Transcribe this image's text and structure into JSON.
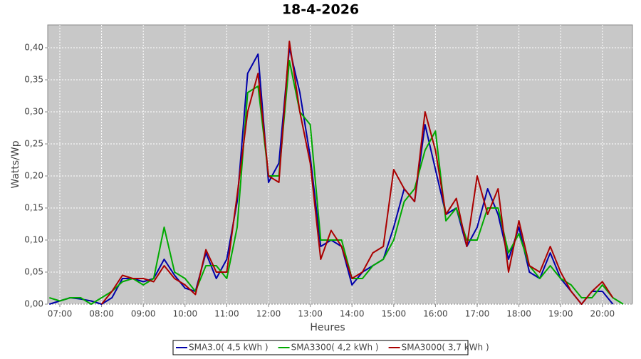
{
  "chart_data": {
    "type": "line",
    "title": "18-4-2026",
    "x_label": "Heures",
    "y_label": "Watts/Wp",
    "grid": true,
    "x": [
      6.75,
      7.0,
      7.25,
      7.5,
      7.75,
      8.0,
      8.25,
      8.5,
      8.75,
      9.0,
      9.25,
      9.5,
      9.75,
      10.0,
      10.25,
      10.5,
      10.75,
      11.0,
      11.25,
      11.5,
      11.75,
      12.0,
      12.25,
      12.5,
      12.75,
      13.0,
      13.25,
      13.5,
      13.75,
      14.0,
      14.25,
      14.5,
      14.75,
      15.0,
      15.25,
      15.5,
      15.75,
      16.0,
      16.25,
      16.5,
      16.75,
      17.0,
      17.25,
      17.5,
      17.75,
      18.0,
      18.25,
      18.5,
      18.75,
      19.0,
      19.25,
      19.5,
      19.75,
      20.0,
      20.25,
      20.5
    ],
    "series": [
      {
        "name": "SMA3.0( 4,5 kWh )",
        "color": "#0000aa",
        "values": [
          0,
          0.005,
          0.01,
          0.008,
          0.005,
          0,
          0.01,
          0.04,
          0.04,
          0.035,
          0.04,
          0.07,
          0.045,
          0.025,
          0.02,
          0.08,
          0.04,
          0.07,
          0.16,
          0.36,
          0.39,
          0.19,
          0.22,
          0.4,
          0.33,
          0.23,
          0.09,
          0.1,
          0.09,
          0.03,
          0.05,
          0.06,
          0.07,
          0.12,
          0.18,
          0.16,
          0.28,
          0.21,
          0.14,
          0.15,
          0.09,
          0.12,
          0.18,
          0.14,
          0.07,
          0.12,
          0.05,
          0.04,
          0.08,
          0.04,
          0.02,
          0,
          0.02,
          0.02,
          0,
          null
        ]
      },
      {
        "name": "SMA3300( 4,2 kWh )",
        "color": "#00aa00",
        "values": [
          0.01,
          0.005,
          0.01,
          0.01,
          0,
          0.01,
          0.02,
          0.035,
          0.04,
          0.03,
          0.04,
          0.12,
          0.05,
          0.04,
          0.02,
          0.06,
          0.06,
          0.04,
          0.12,
          0.33,
          0.34,
          0.2,
          0.2,
          0.38,
          0.3,
          0.28,
          0.1,
          0.1,
          0.1,
          0.04,
          0.04,
          0.06,
          0.07,
          0.1,
          0.16,
          0.18,
          0.24,
          0.27,
          0.13,
          0.15,
          0.1,
          0.1,
          0.15,
          0.15,
          0.08,
          0.11,
          0.06,
          0.04,
          0.06,
          0.04,
          0.03,
          0.01,
          0.01,
          0.03,
          0.01,
          0
        ]
      },
      {
        "name": "SMA3000( 3,7 kWh )",
        "color": "#aa0000",
        "values": [
          null,
          null,
          null,
          null,
          null,
          0,
          0.02,
          0.045,
          0.04,
          0.04,
          0.035,
          0.06,
          0.04,
          0.03,
          0.015,
          0.085,
          0.05,
          0.05,
          0.17,
          0.3,
          0.36,
          0.2,
          0.19,
          0.41,
          0.3,
          0.22,
          0.07,
          0.115,
          0.09,
          0.04,
          0.05,
          0.08,
          0.09,
          0.21,
          0.18,
          0.16,
          0.3,
          0.24,
          0.14,
          0.165,
          0.09,
          0.2,
          0.14,
          0.18,
          0.05,
          0.13,
          0.06,
          0.05,
          0.09,
          0.05,
          0.02,
          0,
          0.02,
          0.035,
          0.01,
          null
        ]
      }
    ],
    "xlim": [
      6.71,
      20.72
    ],
    "ylim": [
      0,
      0.4356
    ],
    "xticks": [
      {
        "value": 7,
        "label": "07:00"
      },
      {
        "value": 8,
        "label": "08:00"
      },
      {
        "value": 9,
        "label": "09:00"
      },
      {
        "value": 10,
        "label": "10:00"
      },
      {
        "value": 11,
        "label": "11:00"
      },
      {
        "value": 12,
        "label": "12:00"
      },
      {
        "value": 13,
        "label": "13:00"
      },
      {
        "value": 14,
        "label": "14:00"
      },
      {
        "value": 15,
        "label": "15:00"
      },
      {
        "value": 16,
        "label": "16:00"
      },
      {
        "value": 17,
        "label": "17:00"
      },
      {
        "value": 18,
        "label": "18:00"
      },
      {
        "value": 19,
        "label": "19:00"
      },
      {
        "value": 20,
        "label": "20:00"
      }
    ],
    "yticks": [
      {
        "value": 0,
        "label": "0,00"
      },
      {
        "value": 0.05,
        "label": "0,05"
      },
      {
        "value": 0.1,
        "label": "0,10"
      },
      {
        "value": 0.15,
        "label": "0,15"
      },
      {
        "value": 0.2,
        "label": "0,20"
      },
      {
        "value": 0.25,
        "label": "0,25"
      },
      {
        "value": 0.3,
        "label": "0,30"
      },
      {
        "value": 0.35,
        "label": "0,35"
      },
      {
        "value": 0.4,
        "label": "0,40"
      }
    ]
  }
}
